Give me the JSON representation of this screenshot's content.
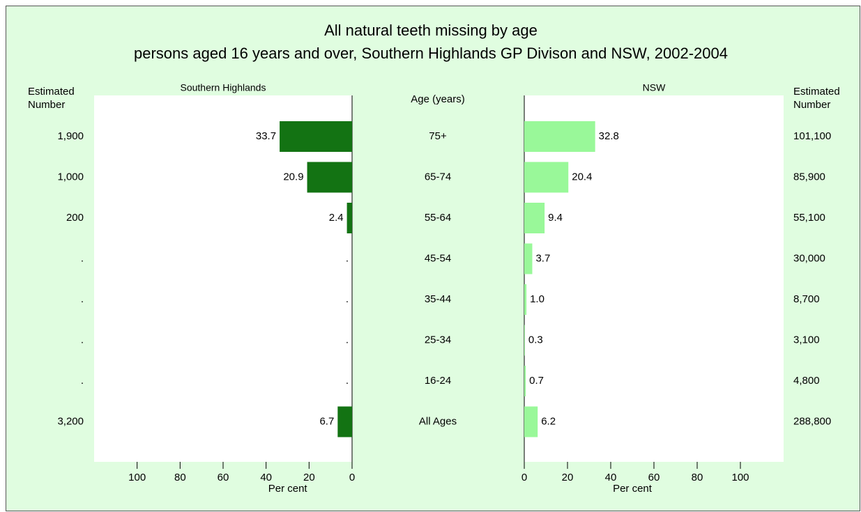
{
  "chart_data": {
    "type": "bar",
    "title": "All natural teeth missing by age",
    "subtitle": "persons aged 16 years and over, Southern Highlands GP Divison and NSW, 2002-2004",
    "category_label": "Age (years)",
    "estimated_label": "Estimated Number",
    "categories": [
      "75+",
      "65-74",
      "55-64",
      "45-54",
      "35-44",
      "25-34",
      "16-24",
      "All Ages"
    ],
    "series": [
      {
        "name": "Southern Highlands",
        "color": "#137313",
        "values": [
          33.7,
          20.9,
          2.4,
          null,
          null,
          null,
          null,
          6.7
        ],
        "value_labels": [
          "33.7",
          "20.9",
          "2.4",
          ".",
          ".",
          ".",
          ".",
          "6.7"
        ],
        "estimated_numbers": [
          "1,900",
          "1,000",
          "200",
          ".",
          ".",
          ".",
          ".",
          "3,200"
        ],
        "xlim": [
          120,
          0
        ],
        "xticks": [
          100,
          80,
          60,
          40,
          20,
          0
        ],
        "xlabel": "Per cent"
      },
      {
        "name": "NSW",
        "color": "#99f899",
        "values": [
          32.8,
          20.4,
          9.4,
          3.7,
          1.0,
          0.3,
          0.7,
          6.2
        ],
        "value_labels": [
          "32.8",
          "20.4",
          "9.4",
          "3.7",
          "1.0",
          "0.3",
          "0.7",
          "6.2"
        ],
        "estimated_numbers": [
          "101,100",
          "85,900",
          "55,100",
          "30,000",
          "8,700",
          "3,100",
          "4,800",
          "288,800"
        ],
        "xlim": [
          0,
          120
        ],
        "xticks": [
          0,
          20,
          40,
          60,
          80,
          100
        ],
        "xlabel": "Per cent"
      }
    ]
  }
}
